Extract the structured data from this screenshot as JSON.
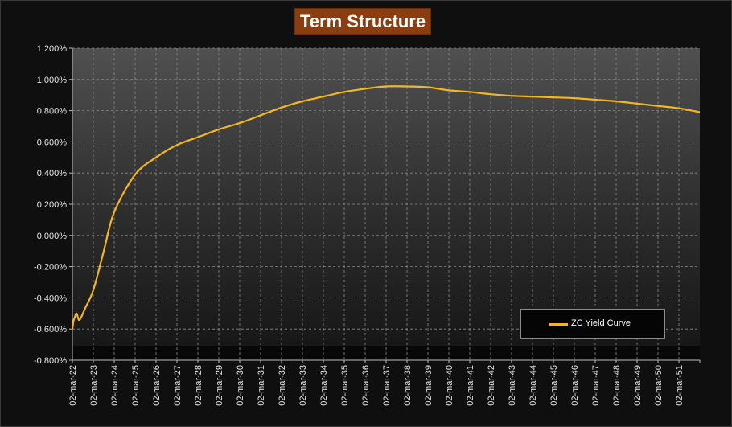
{
  "chart_data": {
    "type": "line",
    "title": "Term Structure",
    "xlabel": "",
    "ylabel": "",
    "ylim": [
      -0.8,
      1.2
    ],
    "y_ticks": [
      "1,200%",
      "1,000%",
      "0,800%",
      "0,600%",
      "0,400%",
      "0,200%",
      "0,000%",
      "-0,200%",
      "-0,400%",
      "-0,600%",
      "-0,800%"
    ],
    "x_ticks": [
      "02-mar-22",
      "02-mar-23",
      "02-mar-24",
      "02-mar-25",
      "02-mar-26",
      "02-mar-27",
      "02-mar-28",
      "02-mar-29",
      "02-mar-30",
      "02-mar-31",
      "02-mar-32",
      "02-mar-33",
      "02-mar-34",
      "02-mar-35",
      "02-mar-36",
      "02-mar-37",
      "02-mar-38",
      "02-mar-39",
      "02-mar-40",
      "02-mar-41",
      "02-mar-42",
      "02-mar-43",
      "02-mar-44",
      "02-mar-45",
      "02-mar-46",
      "02-mar-47",
      "02-mar-48",
      "02-mar-49",
      "02-mar-50",
      "02-mar-51"
    ],
    "grid": true,
    "legend_position": "bottom-right",
    "series": [
      {
        "name": "ZC Yield Curve",
        "color": "#f3b61f",
        "x": [
          2022.0,
          2022.05,
          2022.1,
          2022.2,
          2022.3,
          2022.4,
          2022.6,
          2023.0,
          2023.5,
          2024.0,
          2025.0,
          2026.0,
          2027.0,
          2028.0,
          2029.0,
          2030.0,
          2031.0,
          2032.0,
          2033.0,
          2034.0,
          2035.0,
          2036.0,
          2037.0,
          2038.0,
          2039.0,
          2040.0,
          2041.0,
          2042.0,
          2043.0,
          2044.0,
          2045.0,
          2046.0,
          2047.0,
          2048.0,
          2049.0,
          2050.0,
          2051.0,
          2052.0
        ],
        "values": [
          -0.6,
          -0.55,
          -0.53,
          -0.5,
          -0.54,
          -0.53,
          -0.47,
          -0.35,
          -0.1,
          0.15,
          0.39,
          0.5,
          0.58,
          0.63,
          0.68,
          0.72,
          0.77,
          0.82,
          0.86,
          0.89,
          0.92,
          0.94,
          0.955,
          0.955,
          0.95,
          0.93,
          0.92,
          0.905,
          0.895,
          0.89,
          0.885,
          0.88,
          0.87,
          0.86,
          0.845,
          0.83,
          0.815,
          0.79
        ]
      }
    ]
  }
}
